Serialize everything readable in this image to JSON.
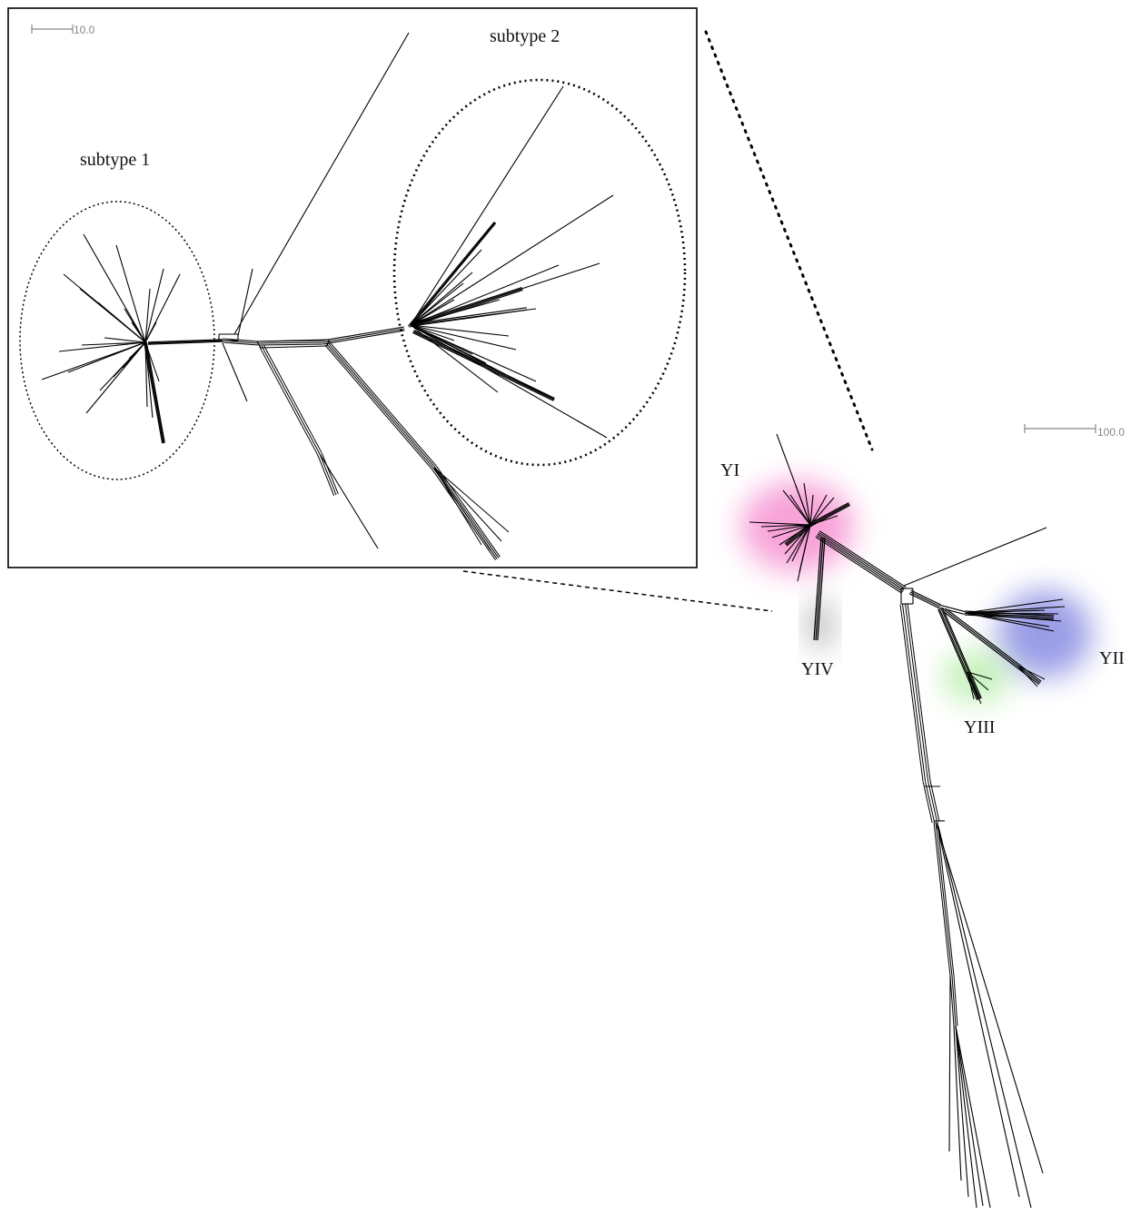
{
  "inset": {
    "scale_bar_label": "10.0",
    "cluster_labels": {
      "subtype1": "subtype 1",
      "subtype2": "subtype 2"
    }
  },
  "main": {
    "scale_bar_label": "100.0",
    "group_labels": {
      "yi": "YI",
      "yii": "YII",
      "yiii": "YIII",
      "yiv": "YIV"
    },
    "group_colors": {
      "yi": "#f47ac8",
      "yii": "#6f74dc",
      "yiii": "#9be889",
      "yiv": "#8a8a8a"
    }
  }
}
